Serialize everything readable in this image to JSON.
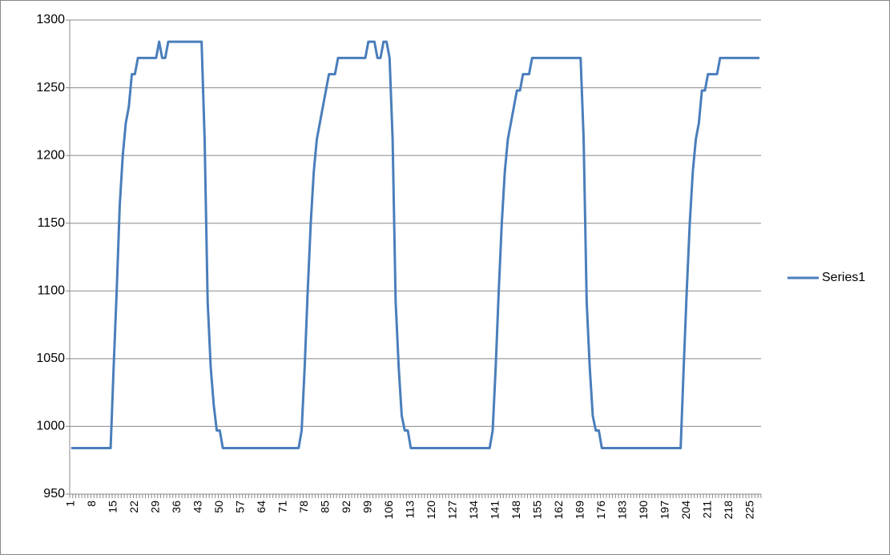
{
  "chart_data": {
    "type": "line",
    "categories": [
      1,
      null,
      null,
      null,
      null,
      null,
      null,
      8,
      null,
      null,
      null,
      null,
      null,
      null,
      15,
      null,
      null,
      null,
      null,
      null,
      null,
      22,
      null,
      null,
      null,
      null,
      null,
      null,
      29,
      null,
      null,
      null,
      null,
      null,
      null,
      36,
      null,
      null,
      null,
      null,
      null,
      null,
      43,
      null,
      null,
      null,
      null,
      null,
      null,
      50,
      null,
      null,
      null,
      null,
      null,
      null,
      57,
      null,
      null,
      null,
      null,
      null,
      null,
      64,
      null,
      null,
      null,
      null,
      null,
      null,
      71,
      null,
      null,
      null,
      null,
      null,
      null,
      78,
      null,
      null,
      null,
      null,
      null,
      null,
      85,
      null,
      null,
      null,
      null,
      null,
      null,
      92,
      null,
      null,
      null,
      null,
      null,
      null,
      99,
      null,
      null,
      null,
      null,
      null,
      null,
      106,
      null,
      null,
      null,
      null,
      null,
      null,
      113,
      null,
      null,
      null,
      null,
      null,
      null,
      120,
      null,
      null,
      null,
      null,
      null,
      null,
      127,
      null,
      null,
      null,
      null,
      null,
      null,
      134,
      null,
      null,
      null,
      null,
      null,
      null,
      141,
      null,
      null,
      null,
      null,
      null,
      null,
      148,
      null,
      null,
      null,
      null,
      null,
      null,
      155,
      null,
      null,
      null,
      null,
      null,
      null,
      162,
      null,
      null,
      null,
      null,
      null,
      null,
      169,
      null,
      null,
      null,
      null,
      null,
      null,
      176,
      null,
      null,
      null,
      null,
      null,
      null,
      183,
      null,
      null,
      null,
      null,
      null,
      null,
      190,
      null,
      null,
      null,
      null,
      null,
      null,
      197,
      null,
      null,
      null,
      null,
      null,
      null,
      204,
      null,
      null,
      null,
      null,
      null,
      null,
      211,
      null,
      null,
      null,
      null,
      null,
      null,
      218,
      null,
      null,
      null,
      null,
      null,
      null,
      225,
      null,
      null,
      null
    ],
    "series": [
      {
        "name": "Series1",
        "color": "#4a7ebb",
        "values": [
          984,
          984,
          984,
          984,
          984,
          984,
          984,
          984,
          984,
          984,
          984,
          984,
          984,
          984,
          1044,
          1100,
          1163,
          1200,
          1224,
          1236,
          1260,
          1260,
          1272,
          1272,
          1272,
          1272,
          1272,
          1272,
          1272,
          1284,
          1272,
          1272,
          1284,
          1284,
          1284,
          1284,
          1284,
          1284,
          1284,
          1284,
          1284,
          1284,
          1284,
          1284,
          1212,
          1092,
          1044,
          1016,
          997,
          997,
          984,
          984,
          984,
          984,
          984,
          984,
          984,
          984,
          984,
          984,
          984,
          984,
          984,
          984,
          984,
          984,
          984,
          984,
          984,
          984,
          984,
          984,
          984,
          984,
          984,
          984,
          997,
          1044,
          1100,
          1150,
          1188,
          1212,
          1224,
          1236,
          1248,
          1260,
          1260,
          1260,
          1272,
          1272,
          1272,
          1272,
          1272,
          1272,
          1272,
          1272,
          1272,
          1272,
          1284,
          1284,
          1284,
          1272,
          1272,
          1284,
          1284,
          1272,
          1212,
          1092,
          1044,
          1008,
          997,
          997,
          984,
          984,
          984,
          984,
          984,
          984,
          984,
          984,
          984,
          984,
          984,
          984,
          984,
          984,
          984,
          984,
          984,
          984,
          984,
          984,
          984,
          984,
          984,
          984,
          984,
          984,
          984,
          997,
          1044,
          1100,
          1150,
          1188,
          1212,
          1224,
          1236,
          1248,
          1248,
          1260,
          1260,
          1260,
          1272,
          1272,
          1272,
          1272,
          1272,
          1272,
          1272,
          1272,
          1272,
          1272,
          1272,
          1272,
          1272,
          1272,
          1272,
          1272,
          1272,
          1212,
          1092,
          1044,
          1008,
          997,
          997,
          984,
          984,
          984,
          984,
          984,
          984,
          984,
          984,
          984,
          984,
          984,
          984,
          984,
          984,
          984,
          984,
          984,
          984,
          984,
          984,
          984,
          984,
          984,
          984,
          984,
          984,
          984,
          1044,
          1100,
          1150,
          1188,
          1212,
          1224,
          1248,
          1248,
          1260,
          1260,
          1260,
          1260,
          1272,
          1272,
          1272,
          1272,
          1272,
          1272,
          1272,
          1272,
          1272,
          1272,
          1272,
          1272,
          1272,
          1272
        ]
      }
    ],
    "ylim": [
      950,
      1300
    ],
    "yticks": [
      950,
      1000,
      1050,
      1100,
      1150,
      1200,
      1250,
      1300
    ],
    "grid": true,
    "legend": "right"
  }
}
